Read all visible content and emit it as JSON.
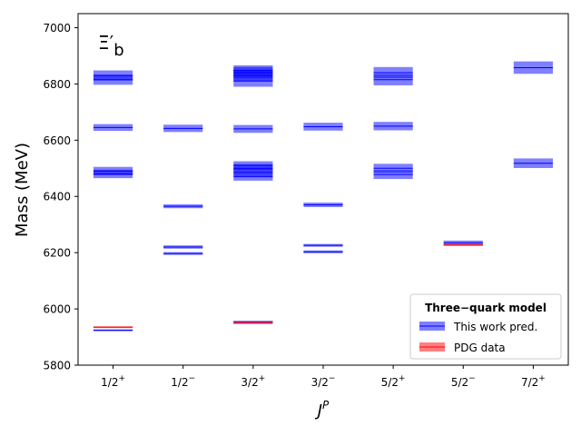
{
  "chart_data": {
    "type": "scatter",
    "particle_label": "Ξ′",
    "particle_subscript": "b",
    "xlabel": "J",
    "xlabel_superscript": "P",
    "ylabel": "Mass (MeV)",
    "ylim": [
      5800,
      7050
    ],
    "yticks": [
      5800,
      6000,
      6200,
      6400,
      6600,
      6800,
      7000
    ],
    "categories": [
      {
        "base": "1/2",
        "parity": "+"
      },
      {
        "base": "1/2",
        "parity": "−"
      },
      {
        "base": "3/2",
        "parity": "+"
      },
      {
        "base": "3/2",
        "parity": "−"
      },
      {
        "base": "5/2",
        "parity": "+"
      },
      {
        "base": "5/2",
        "parity": "−"
      },
      {
        "base": "7/2",
        "parity": "+"
      }
    ],
    "legend": {
      "title": "Three−quark model",
      "placement": "lower-right",
      "entries": [
        {
          "label": "This work pred.",
          "color": "#0000ff"
        },
        {
          "label": "PDG data",
          "color": "#ff0000"
        }
      ]
    },
    "series": [
      {
        "name": "This work pred.",
        "color": "#0000ff",
        "points": [
          {
            "x": 0,
            "y": 5924,
            "err": 3
          },
          {
            "x": 0,
            "y": 6480,
            "err": 15
          },
          {
            "x": 0,
            "y": 6490,
            "err": 15
          },
          {
            "x": 0,
            "y": 6645,
            "err": 12
          },
          {
            "x": 0,
            "y": 6815,
            "err": 18
          },
          {
            "x": 0,
            "y": 6830,
            "err": 18
          },
          {
            "x": 1,
            "y": 6197,
            "err": 5
          },
          {
            "x": 1,
            "y": 6220,
            "err": 6
          },
          {
            "x": 1,
            "y": 6365,
            "err": 7
          },
          {
            "x": 1,
            "y": 6642,
            "err": 13
          },
          {
            "x": 2,
            "y": 5952,
            "err": 6
          },
          {
            "x": 2,
            "y": 6470,
            "err": 14
          },
          {
            "x": 2,
            "y": 6485,
            "err": 14
          },
          {
            "x": 2,
            "y": 6500,
            "err": 15
          },
          {
            "x": 2,
            "y": 6510,
            "err": 15
          },
          {
            "x": 2,
            "y": 6640,
            "err": 14
          },
          {
            "x": 2,
            "y": 6810,
            "err": 20
          },
          {
            "x": 2,
            "y": 6830,
            "err": 20
          },
          {
            "x": 2,
            "y": 6840,
            "err": 20
          },
          {
            "x": 2,
            "y": 6848,
            "err": 18
          },
          {
            "x": 3,
            "y": 6203,
            "err": 5
          },
          {
            "x": 3,
            "y": 6226,
            "err": 5
          },
          {
            "x": 3,
            "y": 6370,
            "err": 8
          },
          {
            "x": 3,
            "y": 6648,
            "err": 14
          },
          {
            "x": 4,
            "y": 6478,
            "err": 16
          },
          {
            "x": 4,
            "y": 6500,
            "err": 16
          },
          {
            "x": 4,
            "y": 6650,
            "err": 15
          },
          {
            "x": 4,
            "y": 6815,
            "err": 20
          },
          {
            "x": 4,
            "y": 6840,
            "err": 20
          },
          {
            "x": 5,
            "y": 6235,
            "err": 8
          },
          {
            "x": 6,
            "y": 6518,
            "err": 17
          },
          {
            "x": 6,
            "y": 6858,
            "err": 22
          }
        ]
      },
      {
        "name": "PDG data",
        "color": "#ff0000",
        "points": [
          {
            "x": 0,
            "y": 5935,
            "err": 0.5
          },
          {
            "x": 2,
            "y": 5953,
            "err": 0.5
          },
          {
            "x": 5,
            "y": 6227,
            "err": 1.5
          }
        ]
      }
    ]
  }
}
